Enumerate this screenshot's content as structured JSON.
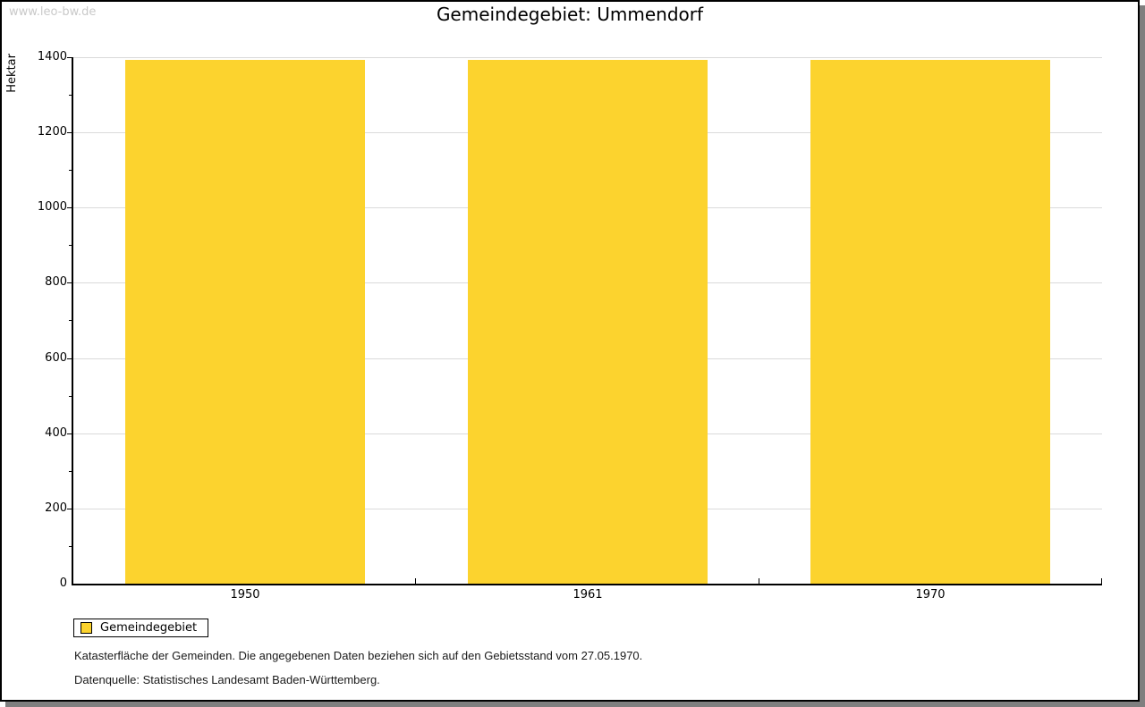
{
  "watermark": "www.leo-bw.de",
  "legend": {
    "label": "Gemeindegebiet"
  },
  "footer": {
    "line1": "Katasterfläche der Gemeinden. Die angegebenen Daten beziehen sich auf den Gebietsstand vom 27.05.1970.",
    "line2": "Datenquelle: Statistisches Landesamt Baden-Württemberg."
  },
  "colors": {
    "bar": "#FCD32E",
    "grid": "#DADADA",
    "axis": "#000000",
    "watermark": "#C9C9C9",
    "shadow": "#7F7F7F",
    "background": "#FFFFFF"
  },
  "chart_data": {
    "type": "bar",
    "title": "Gemeindegebiet: Ummendorf",
    "categories": [
      "1950",
      "1961",
      "1970"
    ],
    "series": [
      {
        "name": "Gemeindegebiet",
        "values": [
          1393,
          1393,
          1393
        ]
      }
    ],
    "xlabel": "",
    "ylabel": "Hektar",
    "ylim": [
      0,
      1400
    ],
    "ytick_major": 200,
    "ytick_minor": 100,
    "ytick_labels": [
      "0",
      "200",
      "400",
      "600",
      "800",
      "1000",
      "1200",
      "1400"
    ],
    "grid": "horizontal-major",
    "bar_width_fraction": 0.7,
    "legend_position": "bottom-left"
  }
}
